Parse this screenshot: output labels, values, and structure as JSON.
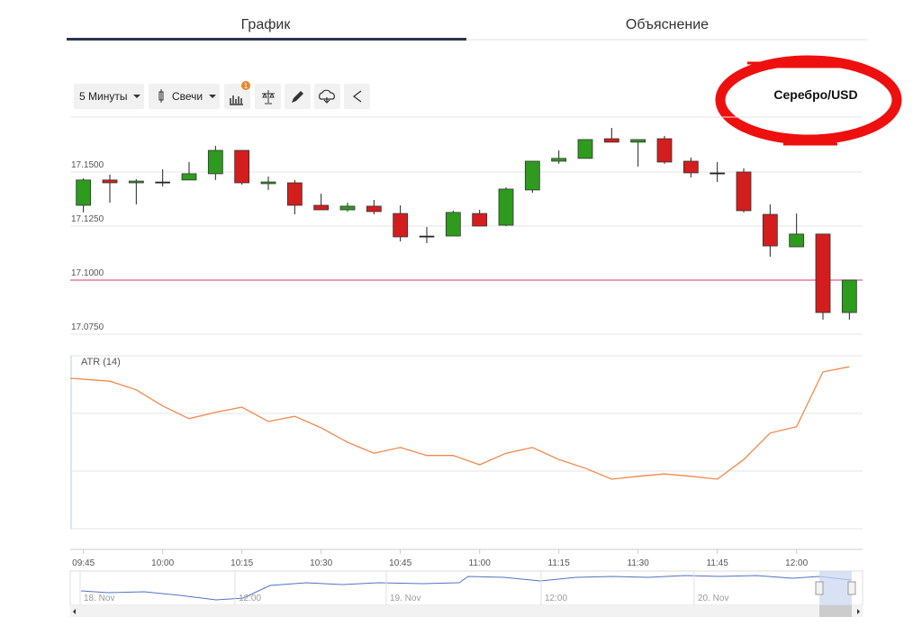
{
  "tabs": [
    "График",
    "Объяснение"
  ],
  "toolbar": {
    "interval": "5 Минуты",
    "chart_type": "Свечи",
    "badge": "1"
  },
  "chart_data": [
    {
      "type": "candlestick",
      "title": "Серебро/USD",
      "categories": [
        "09:45",
        null,
        null,
        "10:00",
        null,
        null,
        "10:15",
        null,
        null,
        "10:30",
        null,
        null,
        "10:45",
        null,
        null,
        "11:00",
        null,
        null,
        "11:15",
        null,
        null,
        "11:30",
        null,
        null,
        "11:45",
        null,
        null,
        "12:00",
        null,
        null
      ],
      "open": [
        17.1346,
        17.1463,
        17.145,
        17.1454,
        17.1463,
        17.1492,
        17.16,
        17.1446,
        17.145,
        17.1346,
        17.1325,
        17.1342,
        17.1308,
        17.1204,
        17.1204,
        17.1308,
        17.1254,
        17.1417,
        17.155,
        17.1563,
        17.1654,
        17.1638,
        17.1654,
        17.155,
        17.1496,
        17.15,
        17.1304,
        17.1154,
        17.1213,
        17.085
      ],
      "high": [
        17.1471,
        17.1488,
        17.1467,
        17.1513,
        17.1546,
        17.1621,
        17.16,
        17.1479,
        17.1463,
        17.14,
        17.1358,
        17.1371,
        17.1346,
        17.1246,
        17.1321,
        17.1325,
        17.1429,
        17.155,
        17.16,
        17.165,
        17.1704,
        17.165,
        17.1667,
        17.1567,
        17.1546,
        17.1517,
        17.135,
        17.1308,
        17.1213,
        17.1
      ],
      "low": [
        17.1313,
        17.1358,
        17.135,
        17.1433,
        17.1463,
        17.1463,
        17.1442,
        17.1417,
        17.1304,
        17.1325,
        17.1317,
        17.1304,
        17.1179,
        17.1171,
        17.1204,
        17.125,
        17.125,
        17.1404,
        17.1538,
        17.1563,
        17.1638,
        17.1525,
        17.1538,
        17.1475,
        17.1454,
        17.1313,
        17.1108,
        17.1154,
        17.0817,
        17.0817
      ],
      "close": [
        17.1463,
        17.145,
        17.1458,
        17.1454,
        17.1492,
        17.16,
        17.145,
        17.1454,
        17.1346,
        17.1325,
        17.1342,
        17.1317,
        17.12,
        17.1204,
        17.1313,
        17.125,
        17.1421,
        17.155,
        17.1563,
        17.165,
        17.1638,
        17.165,
        17.1546,
        17.1496,
        17.1496,
        17.1321,
        17.1158,
        17.1213,
        17.085,
        17.1
      ],
      "up_color": "#2e9a1e",
      "down_color": "#d41d1d",
      "ylim": [
        17.07,
        17.1754
      ],
      "yticks": [
        {
          "value": 17.15,
          "label": "17.1500"
        },
        {
          "value": 17.125,
          "label": "17.1250"
        },
        {
          "value": 17.1,
          "label": "17.1000"
        },
        {
          "value": 17.075,
          "label": "17.0750"
        }
      ],
      "reference_line": {
        "value": 17.1,
        "color": "#e2607e"
      },
      "grid": true
    },
    {
      "type": "line",
      "title": "ATR (14)",
      "values": [
        2.61,
        2.56,
        2.41,
        2.13,
        1.91,
        2.02,
        2.11,
        1.86,
        1.95,
        1.75,
        1.5,
        1.31,
        1.41,
        1.27,
        1.27,
        1.11,
        1.31,
        1.41,
        1.2,
        1.05,
        0.86,
        0.91,
        0.95,
        0.91,
        0.86,
        1.2,
        1.66,
        1.77,
        2.72,
        2.81
      ],
      "color": "#f0894a",
      "ylim": [
        0,
        3
      ],
      "gridlines": [
        1,
        2
      ]
    }
  ],
  "navigator": {
    "labels": [
      "18. Nov",
      "12:00",
      "19. Nov",
      "12:00",
      "20. Nov"
    ]
  }
}
